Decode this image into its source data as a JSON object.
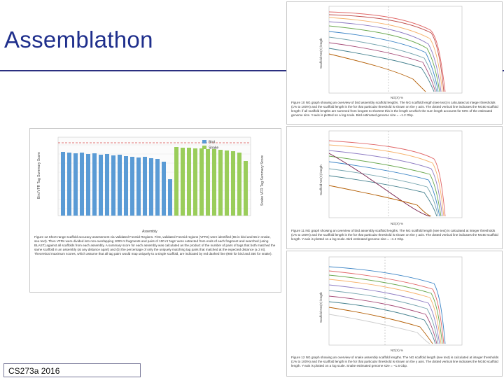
{
  "slide": {
    "title": "Assemblathon",
    "footer": "CS273a 2016"
  },
  "colors": {
    "title": "#1f2f8c",
    "rule": "#2b2f80",
    "bird_bar": "#5a9bd5",
    "snake_bar": "#9acd5a"
  },
  "bar_figure": {
    "left_axis_label": "Bird VFR Tag Summary Score",
    "right_axis_label": "Snake VFR Tag Summary Score",
    "x_axis_label": "Assembly",
    "legend": [
      "Bird",
      "Snake"
    ],
    "caption": "Figure 12 Short-range scaffold accuracy assessment via Validated Fosmid Regions. First, validated Fosmid regions (VFRs) were identified (65 in bird and 56 in snake, see text). Then VFRs were divided into non-overlapping 1000 nt fragments and pairs of 100 nt 'tags' were extracted from ends of each fragment and searched (using BLAST) against all scaffolds from each assembly. A summary score for each assembly was calculated as the product of the number of pairs of tags that both matched the same scaffold in an assembly (at any distance apart) and (b) the percentage of only the uniquely matching tag pairs that matched at the expected distance (± 2 nt). Theoretical maximum scores, which assume that all tag pairs would map uniquely to a single scaffold, are indicated by red dashed line (980 for bird and 350 for snake)."
  },
  "ng_figure_1": {
    "y_axis_label": "Scaffold NG(X) length",
    "x_axis_label": "NG(X) %",
    "caption": "Figure 10 NG graph showing an overview of bird assembly scaffold lengths. The NG scaffold length (see text) is calculated at integer thresholds (1% to 100%) and the scaffold length is the for that particular threshold is shown on the y axis. The dotted vertical line indicates the NG50 scaffold length: if all scaffold lengths are summed from longest to shortest this is the length at which the sum length accounts for 50% of the estimated genome size. Y-axis is plotted on a log scale. Bird estimated genome size = ~1.2 Gbp."
  },
  "ng_figure_2": {
    "y_axis_label": "Scaffold NG(X) length",
    "x_axis_label": "NG(X) %",
    "caption": "Figure 11 NG graph showing an overview of bird assembly scaffold lengths. The NG scaffold length (see text) is calculated at integer thresholds (1% to 100%) and the scaffold length is the for that particular threshold is shown on the y axis. The dotted vertical line indicates the NG50 scaffold length. Y-axis is plotted on a log scale. Bird estimated genome size = ~1.2 Gbp."
  },
  "ng_figure_3": {
    "y_axis_label": "Scaffold NG(X) length",
    "x_axis_label": "NG(X) %",
    "caption": "Figure 12 NG graph showing an overview of snake assembly scaffold lengths. The NG scaffold length (see text) is calculated at integer thresholds (1% to 100%) and the scaffold length is the for that particular threshold is shown on the y axis. The dotted vertical line indicates the NG50 scaffold length. Y-axis is plotted on a log scale. Snake estimated genome size = ~1.6 Gbp."
  }
}
